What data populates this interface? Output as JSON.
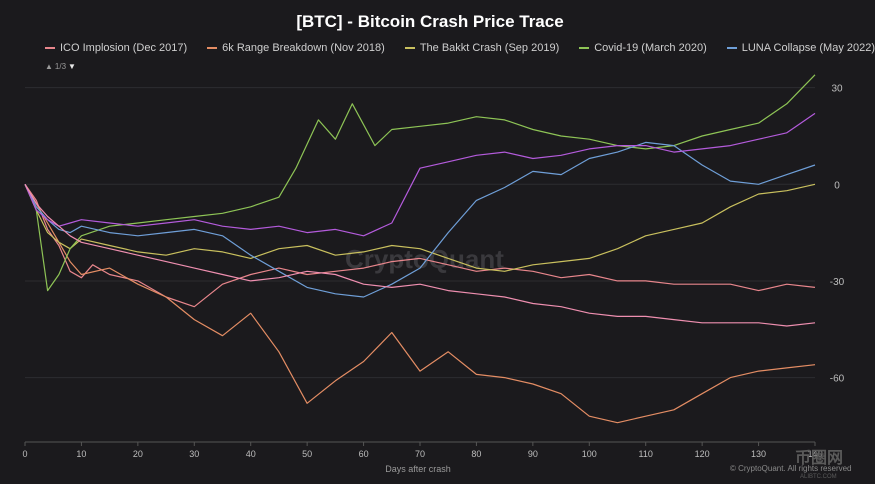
{
  "title": "[BTC] - Bitcoin Crash Price Trace",
  "legend_pager": {
    "up": "▲",
    "text": "1/3",
    "down": "▼"
  },
  "watermark": "CryptoQuant",
  "copyright": "© CryptoQuant. All rights reserved",
  "corner_logo": {
    "text": "币圈网",
    "url": "ALIBTC.COM"
  },
  "colors": {
    "background": "#1b1a1d",
    "grid": "#2d2c30",
    "axis": "#555555",
    "ico": "#e8868c",
    "sixk": "#e48d64",
    "bakkt": "#c9c05e",
    "covid": "#8ec456",
    "luna": "#6f9fd8",
    "extra_purple": "#b45bdc",
    "extra_pink": "#ef8fb0"
  },
  "chart_data": {
    "type": "line",
    "title": "[BTC] - Bitcoin Crash Price Trace",
    "xlabel": "Days after crash",
    "ylabel": "",
    "xlim": [
      0,
      140
    ],
    "ylim": [
      -80,
      33
    ],
    "xticks": [
      0,
      10,
      20,
      30,
      40,
      50,
      60,
      70,
      80,
      90,
      100,
      110,
      120,
      130,
      140
    ],
    "yticks": [
      30,
      0,
      -30,
      -60
    ],
    "y_axis_position": "right",
    "legend_position": "top",
    "series": [
      {
        "name": "ICO Implosion (Dec 2017)",
        "color": "#e8868c",
        "in_legend": true,
        "x": [
          0,
          2,
          4,
          6,
          8,
          10,
          12,
          15,
          20,
          25,
          30,
          35,
          40,
          45,
          50,
          55,
          60,
          65,
          70,
          75,
          80,
          85,
          90,
          95,
          100,
          105,
          110,
          115,
          120,
          125,
          130,
          135,
          140
        ],
        "y": [
          0,
          -5,
          -14,
          -19,
          -27,
          -29,
          -25,
          -28,
          -30,
          -35,
          -38,
          -31,
          -28,
          -26,
          -28,
          -27,
          -26,
          -24,
          -23,
          -25,
          -27,
          -26,
          -27,
          -29,
          -28,
          -30,
          -30,
          -31,
          -31,
          -31,
          -33,
          -31,
          -32
        ]
      },
      {
        "name": "6k Range Breakdown (Nov 2018)",
        "color": "#e48d64",
        "in_legend": true,
        "x": [
          0,
          2,
          4,
          6,
          8,
          10,
          15,
          20,
          25,
          30,
          35,
          40,
          45,
          50,
          55,
          60,
          65,
          70,
          75,
          80,
          85,
          90,
          95,
          100,
          105,
          110,
          115,
          120,
          125,
          130,
          135,
          140
        ],
        "y": [
          0,
          -6,
          -12,
          -18,
          -24,
          -28,
          -26,
          -31,
          -35,
          -42,
          -47,
          -40,
          -52,
          -68,
          -61,
          -55,
          -46,
          -58,
          -52,
          -59,
          -60,
          -62,
          -65,
          -72,
          -74,
          -72,
          -70,
          -65,
          -60,
          -58,
          -57,
          -56
        ]
      },
      {
        "name": "The Bakkt Crash (Sep 2019)",
        "color": "#c9c05e",
        "in_legend": true,
        "x": [
          0,
          2,
          4,
          6,
          8,
          10,
          15,
          20,
          25,
          30,
          35,
          40,
          45,
          50,
          55,
          60,
          65,
          70,
          75,
          80,
          85,
          90,
          95,
          100,
          105,
          110,
          115,
          120,
          125,
          130,
          135,
          140
        ],
        "y": [
          0,
          -8,
          -15,
          -18,
          -20,
          -17,
          -19,
          -21,
          -22,
          -20,
          -21,
          -23,
          -20,
          -19,
          -22,
          -21,
          -19,
          -20,
          -23,
          -26,
          -27,
          -25,
          -24,
          -23,
          -20,
          -16,
          -14,
          -12,
          -7,
          -3,
          -2,
          0
        ]
      },
      {
        "name": "Covid-19 (March 2020)",
        "color": "#8ec456",
        "in_legend": true,
        "x": [
          0,
          2,
          4,
          6,
          8,
          10,
          15,
          20,
          25,
          30,
          35,
          40,
          45,
          48,
          52,
          55,
          58,
          62,
          65,
          70,
          75,
          80,
          85,
          90,
          95,
          100,
          105,
          110,
          115,
          120,
          125,
          130,
          135,
          140
        ],
        "y": [
          0,
          -8,
          -33,
          -28,
          -20,
          -16,
          -13,
          -12,
          -11,
          -10,
          -9,
          -7,
          -4,
          5,
          20,
          14,
          25,
          12,
          17,
          18,
          19,
          21,
          20,
          17,
          15,
          14,
          12,
          11,
          12,
          15,
          17,
          19,
          25,
          34
        ]
      },
      {
        "name": "LUNA Collapse (May 2022)",
        "color": "#6f9fd8",
        "in_legend": true,
        "x": [
          0,
          2,
          4,
          6,
          8,
          10,
          15,
          20,
          25,
          30,
          35,
          40,
          45,
          50,
          55,
          60,
          65,
          70,
          75,
          80,
          85,
          90,
          95,
          100,
          105,
          110,
          115,
          120,
          125,
          130,
          135,
          140
        ],
        "y": [
          0,
          -7,
          -11,
          -14,
          -15,
          -13,
          -15,
          -16,
          -15,
          -14,
          -16,
          -22,
          -27,
          -32,
          -34,
          -35,
          -31,
          -26,
          -15,
          -5,
          -1,
          4,
          3,
          8,
          10,
          13,
          12,
          6,
          1,
          0,
          3,
          6
        ]
      },
      {
        "name": "",
        "color": "#b45bdc",
        "in_legend": false,
        "x": [
          0,
          2,
          4,
          6,
          8,
          10,
          15,
          20,
          25,
          30,
          35,
          40,
          45,
          50,
          55,
          60,
          65,
          70,
          75,
          80,
          85,
          90,
          95,
          100,
          105,
          110,
          115,
          120,
          125,
          130,
          135,
          140
        ],
        "y": [
          0,
          -8,
          -11,
          -13,
          -12,
          -11,
          -12,
          -13,
          -12,
          -11,
          -13,
          -14,
          -13,
          -15,
          -14,
          -16,
          -12,
          5,
          7,
          9,
          10,
          8,
          9,
          11,
          12,
          12,
          10,
          11,
          12,
          14,
          16,
          22
        ]
      },
      {
        "name": "",
        "color": "#ef8fb0",
        "in_legend": false,
        "x": [
          0,
          2,
          4,
          6,
          8,
          10,
          15,
          20,
          25,
          30,
          35,
          40,
          45,
          50,
          55,
          60,
          65,
          70,
          75,
          80,
          85,
          90,
          95,
          100,
          105,
          110,
          115,
          120,
          125,
          130,
          135,
          140
        ],
        "y": [
          0,
          -6,
          -10,
          -13,
          -16,
          -18,
          -20,
          -22,
          -24,
          -26,
          -28,
          -30,
          -29,
          -27,
          -28,
          -31,
          -32,
          -31,
          -33,
          -34,
          -35,
          -37,
          -38,
          -40,
          -41,
          -41,
          -42,
          -43,
          -43,
          -43,
          -44,
          -43
        ]
      }
    ]
  }
}
